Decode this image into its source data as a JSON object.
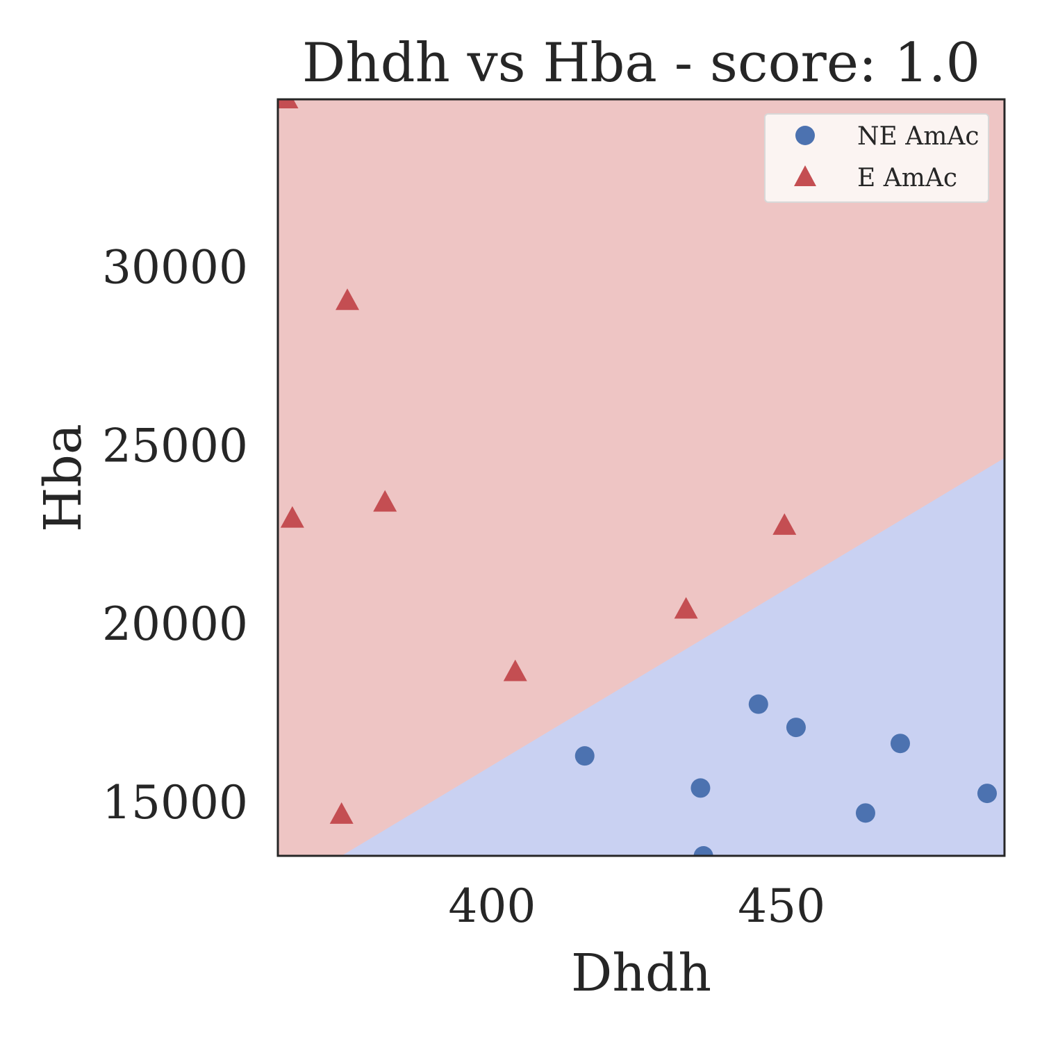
{
  "chart_data": {
    "type": "scatter",
    "title": "Dhdh vs Hba - score: 1.0",
    "xlabel": "Dhdh",
    "ylabel": "Hba",
    "xlim": [
      363,
      488.5
    ],
    "ylim": [
      13500,
      34700
    ],
    "xticks": [
      400,
      450
    ],
    "xtick_labels": [
      "400",
      "450"
    ],
    "yticks": [
      15000,
      20000,
      25000,
      30000
    ],
    "ytick_labels": [
      "15000",
      "20000",
      "25000",
      "30000"
    ],
    "grid": false,
    "legend": {
      "position": "top-right",
      "entries": [
        {
          "label": "NE AmAc",
          "marker": "circle",
          "color": "#4c72b0"
        },
        {
          "label": "E AmAc",
          "marker": "triangle",
          "color": "#c44e52"
        }
      ]
    },
    "decision_regions": {
      "boundary_line": [
        [
          374,
          13500
        ],
        [
          488.5,
          24650
        ]
      ],
      "above_color": "#eec5c4",
      "below_color": "#c9d1f2",
      "above_class": "E AmAc",
      "below_class": "NE AmAc"
    },
    "series": [
      {
        "name": "NE AmAc",
        "marker": "circle",
        "color": "#4c72b0",
        "points": [
          [
            416,
            16300
          ],
          [
            446,
            17750
          ],
          [
            452.5,
            17100
          ],
          [
            470.5,
            16650
          ],
          [
            436,
            15400
          ],
          [
            464.5,
            14700
          ],
          [
            485.5,
            15250
          ],
          [
            436.5,
            13500
          ]
        ]
      },
      {
        "name": "E AmAc",
        "marker": "triangle",
        "color": "#c44e52",
        "points": [
          [
            364.5,
            34700
          ],
          [
            375,
            29050
          ],
          [
            381.5,
            23400
          ],
          [
            365.5,
            22950
          ],
          [
            450.5,
            22750
          ],
          [
            433.5,
            20400
          ],
          [
            404,
            18650
          ],
          [
            374,
            14650
          ]
        ]
      }
    ]
  }
}
